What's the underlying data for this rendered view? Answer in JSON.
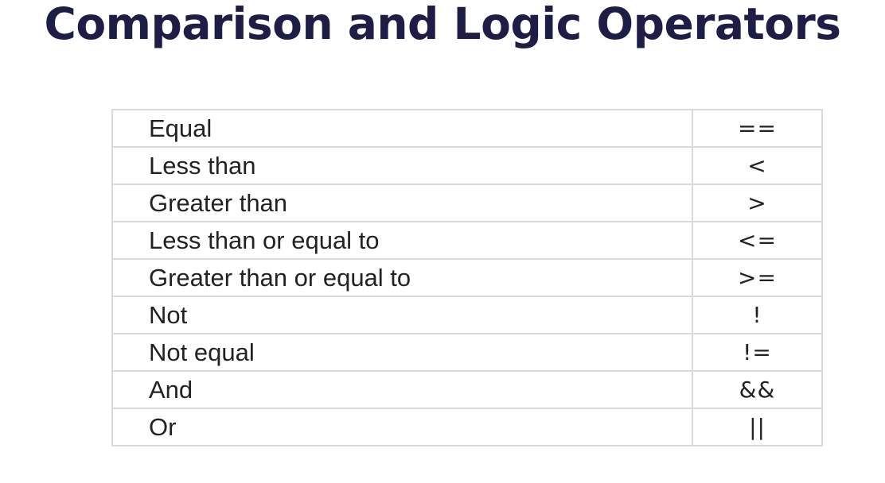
{
  "title": "Comparison and Logic Operators",
  "operators": [
    {
      "name": "Equal",
      "symbol": "=="
    },
    {
      "name": "Less than",
      "symbol": "<"
    },
    {
      "name": "Greater than",
      "symbol": ">"
    },
    {
      "name": "Less than or equal to",
      "symbol": "<="
    },
    {
      "name": "Greater than or equal to",
      "symbol": ">="
    },
    {
      "name": "Not",
      "symbol": "!"
    },
    {
      "name": "Not equal",
      "symbol": "!="
    },
    {
      "name": "And",
      "symbol": "&&"
    },
    {
      "name": "Or",
      "symbol": "||"
    }
  ]
}
